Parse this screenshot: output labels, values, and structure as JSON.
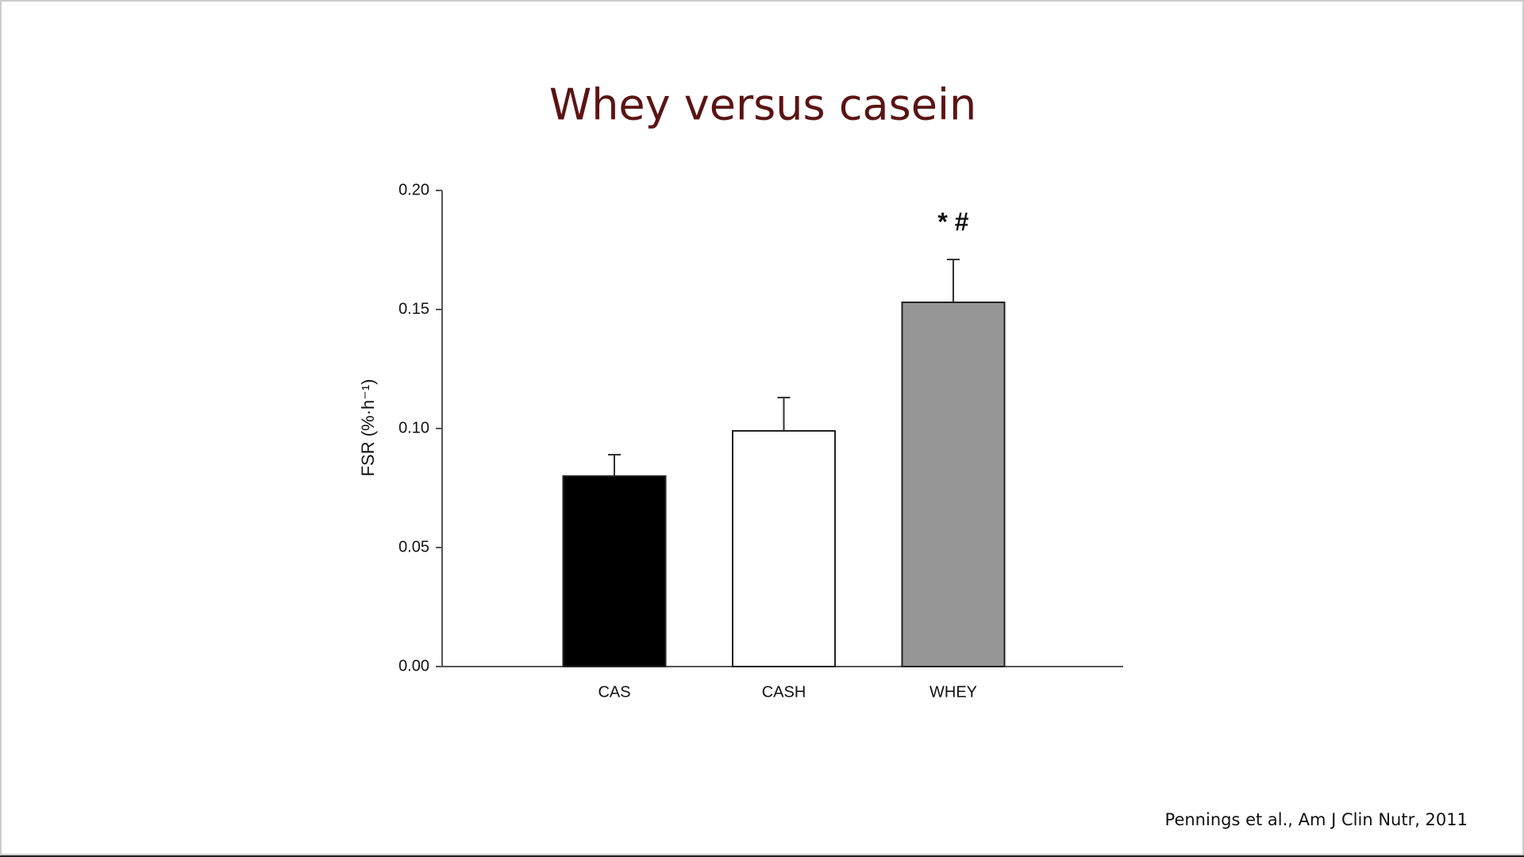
{
  "chart_data": {
    "type": "bar",
    "title": "Whey versus casein",
    "categories": [
      "CAS",
      "CASH",
      "WHEY"
    ],
    "values": [
      0.08,
      0.099,
      0.153
    ],
    "errors": [
      0.009,
      0.014,
      0.018
    ],
    "colors": [
      "#000000",
      "#ffffff",
      "#969696"
    ],
    "ylabel": "FSR (%·h⁻¹)",
    "ylim": [
      0,
      0.2
    ],
    "yticks": [
      {
        "value": 0,
        "label": "0.00"
      },
      0.05,
      {
        "value": 0.1,
        "label": "0.10"
      },
      0.15,
      {
        "value": 0.2,
        "label": "0.20"
      }
    ],
    "annotation": "* #",
    "source": "Pennings et al., Am J Clin Nutr, 2011"
  }
}
